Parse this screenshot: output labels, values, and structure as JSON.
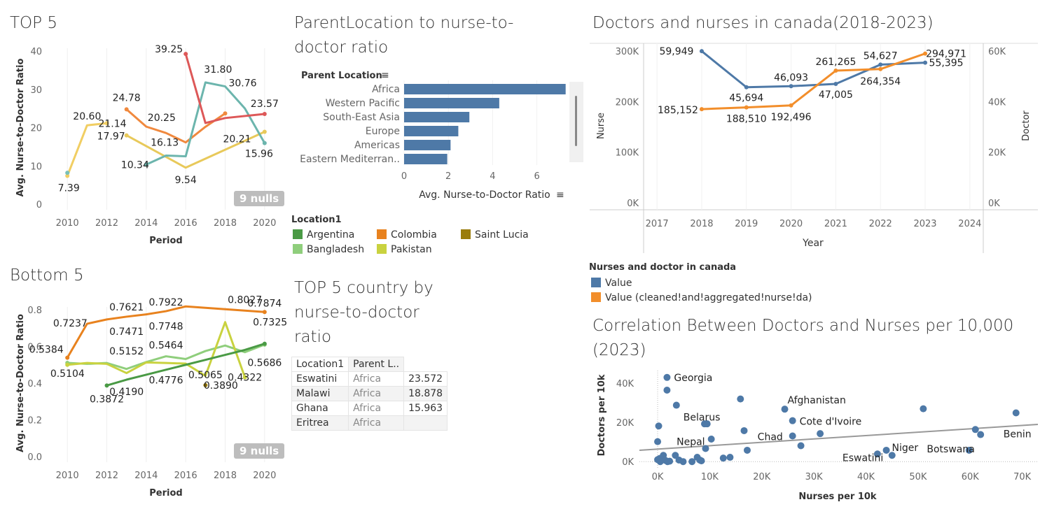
{
  "titles": {
    "top5": "TOP 5",
    "bottom5": "Bottom 5",
    "parent": "ParentLocation to nurse-to-doctor ratio",
    "top5table": "TOP 5 country by nurse-to-doctor ratio",
    "canada": "Doctors and nurses in canada(2018-2023)",
    "corr": "Correlation Between Doctors and Nurses per 10,000 (2023)"
  },
  "nulls_label": "9 nulls",
  "legend_location": {
    "title": "Location1",
    "items": [
      {
        "label": "Argentina",
        "color": "#4a9a45"
      },
      {
        "label": "Colombia",
        "color": "#e8821e"
      },
      {
        "label": "Saint Lucia",
        "color": "#9a7c0a"
      },
      {
        "label": "Bangladesh",
        "color": "#8fce7c"
      },
      {
        "label": "Pakistan",
        "color": "#c9d23f"
      }
    ]
  },
  "legend_canada": {
    "title": "Nurses and doctor in canada",
    "items": [
      {
        "label": "Value",
        "color": "#4e79a7"
      },
      {
        "label": "Value (cleaned!and!aggregated!nurse!da)",
        "color": "#f28e2b"
      }
    ]
  },
  "table": {
    "headers": [
      "Location1",
      "Parent L..",
      ""
    ],
    "rows": [
      [
        "Eswatini",
        "Africa",
        "23.572"
      ],
      [
        "Malawi",
        "Africa",
        "18.878"
      ],
      [
        "Ghana",
        "Africa",
        "15.963"
      ],
      [
        "Eritrea",
        "Africa",
        ""
      ]
    ]
  },
  "chart_data": [
    {
      "id": "top5",
      "type": "line",
      "title": "TOP 5",
      "xlabel": "Period",
      "ylabel": "Avg. Nurse-to-Doctor Ratio",
      "xlim": [
        2009,
        2021
      ],
      "ylim": [
        0,
        40
      ],
      "xticks": [
        2010,
        2012,
        2014,
        2016,
        2018,
        2020
      ],
      "yticks": [
        0,
        10,
        20,
        30,
        40
      ],
      "series": [
        {
          "color": "#f1ce63",
          "x": [
            2010,
            2011,
            2012
          ],
          "y": [
            7.39,
            20.6,
            21.14
          ]
        },
        {
          "color": "#79c0b8",
          "x": [
            2010
          ],
          "y": [
            8.2
          ]
        },
        {
          "color": "#e8c95a",
          "x": [
            2013,
            2016,
            2020
          ],
          "y": [
            17.97,
            9.54,
            18.9
          ]
        },
        {
          "color": "#f0893e",
          "x": [
            2013,
            2014,
            2015,
            2016,
            2017,
            2018
          ],
          "y": [
            24.78,
            20.25,
            18.6,
            16.13,
            20.21,
            23.7
          ]
        },
        {
          "color": "#6cb5ad",
          "x": [
            2014,
            2015,
            2016,
            2017,
            2018,
            2019,
            2020
          ],
          "y": [
            10.34,
            12.7,
            12.5,
            31.8,
            30.76,
            25.0,
            15.96
          ]
        },
        {
          "color": "#dd5858",
          "x": [
            2016,
            2017,
            2018,
            2020
          ],
          "y": [
            39.25,
            21.2,
            22.5,
            23.57
          ]
        }
      ],
      "labels": [
        {
          "x": 2010,
          "y": 7.39,
          "text": "7.39"
        },
        {
          "x": 2011,
          "y": 20.6,
          "text": "20.60"
        },
        {
          "x": 2012,
          "y": 21.14,
          "text": "21.14"
        },
        {
          "x": 2013,
          "y": 24.78,
          "text": "24.78"
        },
        {
          "x": 2013,
          "y": 17.97,
          "text": "17.97"
        },
        {
          "x": 2014,
          "y": 20.25,
          "text": "20.25"
        },
        {
          "x": 2014,
          "y": 10.34,
          "text": "10.34"
        },
        {
          "x": 2016,
          "y": 39.25,
          "text": "39.25"
        },
        {
          "x": 2016,
          "y": 16.13,
          "text": "16.13"
        },
        {
          "x": 2016,
          "y": 9.54,
          "text": "9.54"
        },
        {
          "x": 2017,
          "y": 31.8,
          "text": "31.80"
        },
        {
          "x": 2018,
          "y": 30.76,
          "text": "30.76"
        },
        {
          "x": 2018,
          "y": 20.21,
          "text": "20.21"
        },
        {
          "x": 2020,
          "y": 23.57,
          "text": "23.57"
        },
        {
          "x": 2020,
          "y": 15.96,
          "text": "15.96"
        }
      ]
    },
    {
      "id": "bottom5",
      "type": "line",
      "title": "Bottom 5",
      "xlabel": "Period",
      "ylabel": "Avg. Nurse-to-Doctor Ratio",
      "xlim": [
        2009,
        2021
      ],
      "ylim": [
        0,
        0.8
      ],
      "xticks": [
        2010,
        2012,
        2014,
        2016,
        2018,
        2020
      ],
      "yticks": [
        0.0,
        0.2,
        0.4,
        0.6,
        0.8
      ],
      "ytick_labels": [
        "0.0",
        "0.2",
        "0.4",
        "0.6",
        "0.8"
      ],
      "series": [
        {
          "name": "Colombia",
          "color": "#e8821e",
          "x": [
            2010,
            2011,
            2012,
            2013,
            2014,
            2015,
            2016,
            2018,
            2020
          ],
          "y": [
            0.5384,
            0.7237,
            0.7471,
            0.7621,
            0.7748,
            0.7922,
            0.8181,
            0.8027,
            0.7874
          ]
        },
        {
          "name": "Bangladesh",
          "color": "#8fce7c",
          "x": [
            2010,
            2011,
            2012,
            2013,
            2014,
            2015,
            2016,
            2017,
            2018,
            2019,
            2020
          ],
          "y": [
            0.5104,
            0.505,
            0.51,
            0.4776,
            0.5152,
            0.5464,
            0.5316,
            0.575,
            0.605,
            0.5686,
            0.61
          ]
        },
        {
          "name": "Pakistan",
          "color": "#c9d23f",
          "x": [
            2010,
            2011,
            2012,
            2013,
            2014,
            2015,
            2016,
            2017,
            2018,
            2019
          ],
          "y": [
            0.5,
            0.51,
            0.505,
            0.455,
            0.513,
            0.51,
            0.5065,
            0.44,
            0.7325,
            0.4322
          ]
        },
        {
          "name": "Argentina",
          "color": "#4a9a45",
          "x": [
            2012,
            2013,
            2014,
            2015,
            2016,
            2017,
            2018,
            2019,
            2020
          ],
          "y": [
            0.3872,
            0.419,
            0.446,
            0.473,
            0.5,
            0.527,
            0.554,
            0.581,
            0.615
          ]
        },
        {
          "name": "Saint Lucia",
          "color": "#9a7c0a",
          "x": [
            2017
          ],
          "y": [
            0.389
          ]
        }
      ],
      "labels": [
        {
          "x": 2010,
          "y": 0.5384,
          "text": "0.5384"
        },
        {
          "x": 2011,
          "y": 0.7237,
          "text": "0.7237"
        },
        {
          "x": 2013,
          "y": 0.7621,
          "text": "0.7621"
        },
        {
          "x": 2013,
          "y": 0.7471,
          "text": "0.7471"
        },
        {
          "x": 2015,
          "y": 0.7922,
          "text": "0.7922"
        },
        {
          "x": 2015,
          "y": 0.7748,
          "text": "0.7748"
        },
        {
          "x": 2019,
          "y": 0.8027,
          "text": "0.8027"
        },
        {
          "x": 2020,
          "y": 0.7874,
          "text": "0.7874"
        },
        {
          "x": 2011,
          "y": 0.5104,
          "text": "0.5104"
        },
        {
          "x": 2013,
          "y": 0.5152,
          "text": "0.5152"
        },
        {
          "x": 2015,
          "y": 0.5464,
          "text": "0.5464"
        },
        {
          "x": 2012,
          "y": 0.3872,
          "text": "0.3872"
        },
        {
          "x": 2013,
          "y": 0.419,
          "text": "0.4190"
        },
        {
          "x": 2015,
          "y": 0.4776,
          "text": "0.4776"
        },
        {
          "x": 2017,
          "y": 0.5065,
          "text": "0.5065"
        },
        {
          "x": 2017,
          "y": 0.389,
          "text": "0.3890"
        },
        {
          "x": 2019,
          "y": 0.7325,
          "text": "0.7325"
        },
        {
          "x": 2019,
          "y": 0.4322,
          "text": "0.4322"
        },
        {
          "x": 2020,
          "y": 0.5686,
          "text": "0.5686"
        }
      ]
    },
    {
      "id": "parent",
      "type": "bar",
      "orientation": "horizontal",
      "title": "ParentLocation to nurse-to-doctor ratio",
      "xlabel": "Avg. Nurse-to-Doctor Ratio",
      "ylabel": "Parent Location",
      "categories": [
        "Africa",
        "Western Pacific",
        "South-East Asia",
        "Europe",
        "Americas",
        "Eastern Mediterran.."
      ],
      "values": [
        7.3,
        4.3,
        2.95,
        2.45,
        2.1,
        1.95
      ],
      "xlim": [
        0,
        7.5
      ],
      "xticks": [
        0,
        2,
        4,
        6
      ],
      "color": "#4e79a7"
    },
    {
      "id": "canada",
      "type": "line",
      "title": "Doctors and nurses in canada(2018-2023)",
      "xlabel": "Year",
      "ylabel_left": "Nurse",
      "ylabel_right": "Doctor",
      "xlim": [
        2016.7,
        2024.3
      ],
      "ylim_left": [
        0,
        300000
      ],
      "ylim_right": [
        0,
        60000
      ],
      "xticks": [
        2017,
        2018,
        2019,
        2020,
        2021,
        2022,
        2023,
        2024
      ],
      "yticks_left": [
        "0K",
        "100K",
        "200K",
        "300K"
      ],
      "yticks_right": [
        "0K",
        "20K",
        "40K",
        "60K"
      ],
      "series": [
        {
          "name": "Value",
          "color": "#4e79a7",
          "axis": "right",
          "x": [
            2018,
            2019,
            2020,
            2021,
            2022,
            2023
          ],
          "y": [
            59949,
            45694,
            46093,
            47005,
            54627,
            55395
          ]
        },
        {
          "name": "Value (cleaned!and!aggregated!nurse!da)",
          "color": "#f28e2b",
          "axis": "left",
          "x": [
            2018,
            2019,
            2020,
            2021,
            2022,
            2023
          ],
          "y": [
            185152,
            188510,
            192496,
            261265,
            264354,
            294971
          ]
        }
      ],
      "labels": [
        {
          "s": 0,
          "i": 0,
          "text": "59,949"
        },
        {
          "s": 0,
          "i": 1,
          "text": "45,694"
        },
        {
          "s": 0,
          "i": 2,
          "text": "46,093"
        },
        {
          "s": 0,
          "i": 3,
          "text": "47,005"
        },
        {
          "s": 0,
          "i": 4,
          "text": "54,627"
        },
        {
          "s": 0,
          "i": 5,
          "text": "55,395"
        },
        {
          "s": 1,
          "i": 0,
          "text": "185,152"
        },
        {
          "s": 1,
          "i": 1,
          "text": "188,510"
        },
        {
          "s": 1,
          "i": 2,
          "text": "192,496"
        },
        {
          "s": 1,
          "i": 3,
          "text": "261,265"
        },
        {
          "s": 1,
          "i": 4,
          "text": "264,354"
        },
        {
          "s": 1,
          "i": 5,
          "text": "294,971"
        }
      ]
    },
    {
      "id": "corr",
      "type": "scatter",
      "title": "Correlation Between Doctors and Nurses per 10,000 (2023)",
      "xlabel": "Nurses per 10k",
      "ylabel": "Doctors per 10k",
      "xlim": [
        -3500,
        73000
      ],
      "ylim": [
        -3500,
        46500
      ],
      "xticks": [
        0,
        10000,
        20000,
        30000,
        40000,
        50000,
        60000,
        70000
      ],
      "xtick_labels": [
        "0K",
        "10K",
        "20K",
        "30K",
        "40K",
        "50K",
        "60K",
        "70K"
      ],
      "yticks": [
        0,
        20000,
        40000
      ],
      "ytick_labels": [
        "0K",
        "20K",
        "40K"
      ],
      "color": "#4e79a7",
      "trend": [
        [
          -3500,
          5800
        ],
        [
          73000,
          19000
        ]
      ],
      "points": [
        [
          1800,
          43000
        ],
        [
          1800,
          36500
        ],
        [
          3600,
          28800
        ],
        [
          9000,
          19300
        ],
        [
          9500,
          19300
        ],
        [
          200,
          18200
        ],
        [
          15900,
          32000
        ],
        [
          16600,
          15800
        ],
        [
          24400,
          26800
        ],
        [
          25900,
          20900
        ],
        [
          25900,
          13100
        ],
        [
          27500,
          8100
        ],
        [
          31200,
          14300
        ],
        [
          10300,
          11500
        ],
        [
          9200,
          6700
        ],
        [
          17200,
          5800
        ],
        [
          12600,
          1800
        ],
        [
          13900,
          2200
        ],
        [
          42200,
          3900
        ],
        [
          43900,
          5800
        ],
        [
          45000,
          3200
        ],
        [
          51000,
          27000
        ],
        [
          59800,
          5800
        ],
        [
          61000,
          16400
        ],
        [
          62000,
          13800
        ],
        [
          68800,
          24900
        ],
        [
          0,
          10200
        ],
        [
          0,
          1000
        ],
        [
          400,
          1600
        ],
        [
          1100,
          3200
        ],
        [
          1900,
          0
        ],
        [
          2300,
          200
        ],
        [
          3400,
          3200
        ],
        [
          4100,
          800
        ],
        [
          4900,
          0
        ],
        [
          6600,
          0
        ],
        [
          7600,
          2200
        ],
        [
          8100,
          800
        ],
        [
          8400,
          400
        ],
        [
          500,
          0
        ],
        [
          1500,
          600
        ]
      ],
      "labels": [
        {
          "x": 1800,
          "y": 43000,
          "text": "Georgia"
        },
        {
          "x": 3600,
          "y": 28800,
          "text": "Belarus"
        },
        {
          "x": 24400,
          "y": 26800,
          "text": "Afghanistan"
        },
        {
          "x": 25900,
          "y": 20900,
          "text": "Cote d'Ivoire"
        },
        {
          "x": 25900,
          "y": 13100,
          "text": "Chad"
        },
        {
          "x": 2300,
          "y": 10200,
          "text": "Nepal"
        },
        {
          "x": 42200,
          "y": 3900,
          "text": "Eswatini"
        },
        {
          "x": 43900,
          "y": 5800,
          "text": "Niger"
        },
        {
          "x": 51000,
          "y": 5800,
          "text": "Botswana"
        },
        {
          "x": 68800,
          "y": 16400,
          "text": "Benin"
        }
      ]
    }
  ]
}
